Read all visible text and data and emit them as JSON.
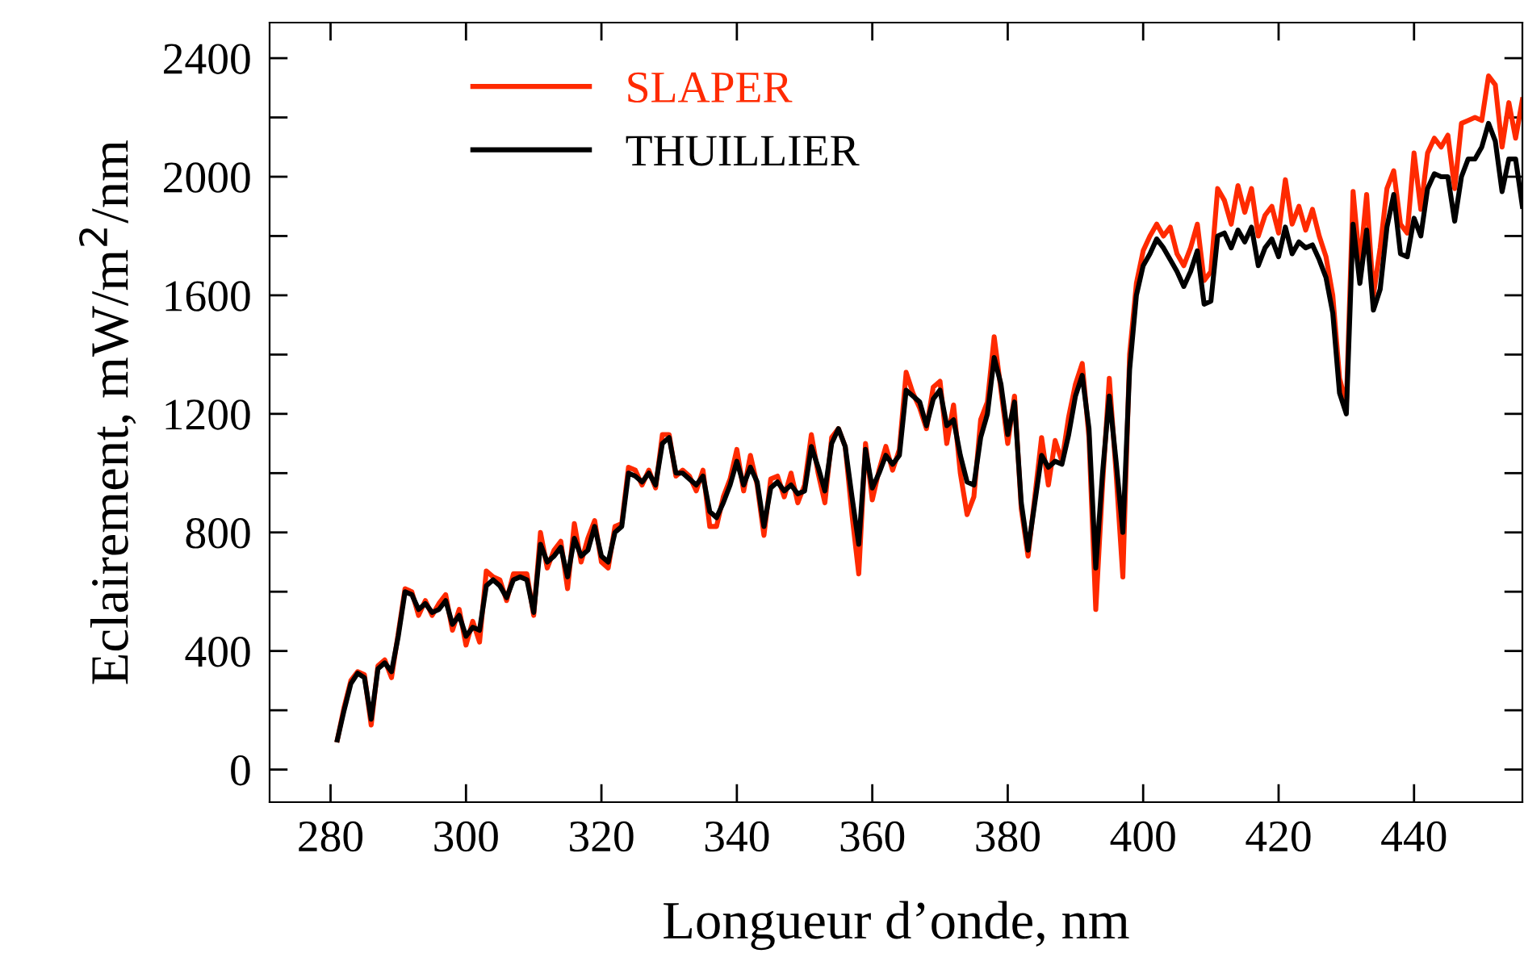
{
  "chart_data": {
    "type": "line",
    "xlabel": "Longueur d’onde, nm",
    "ylabel": "Eclairement, mW/m$^{2}$/nm",
    "x": [
      281,
      282,
      283,
      284,
      285,
      286,
      287,
      288,
      289,
      290,
      291,
      292,
      293,
      294,
      295,
      296,
      297,
      298,
      299,
      300,
      301,
      302,
      303,
      304,
      305,
      306,
      307,
      308,
      309,
      310,
      311,
      312,
      313,
      314,
      315,
      316,
      317,
      318,
      319,
      320,
      321,
      322,
      323,
      324,
      325,
      326,
      327,
      328,
      329,
      330,
      331,
      332,
      333,
      334,
      335,
      336,
      337,
      338,
      339,
      340,
      341,
      342,
      343,
      344,
      345,
      346,
      347,
      348,
      349,
      350,
      351,
      352,
      353,
      354,
      355,
      356,
      357,
      358,
      359,
      360,
      361,
      362,
      363,
      364,
      365,
      366,
      367,
      368,
      369,
      370,
      371,
      372,
      373,
      374,
      375,
      376,
      377,
      378,
      379,
      380,
      381,
      382,
      383,
      384,
      385,
      386,
      387,
      388,
      389,
      390,
      391,
      392,
      393,
      394,
      395,
      396,
      397,
      398,
      399,
      400,
      401,
      402,
      403,
      404,
      405,
      406,
      407,
      408,
      409,
      410,
      411,
      412,
      413,
      414,
      415,
      416,
      417,
      418,
      419,
      420,
      421,
      422,
      423,
      424,
      425,
      426,
      427,
      428,
      429,
      430,
      431,
      432,
      433,
      434,
      435,
      436,
      437,
      438,
      439,
      440,
      441,
      442,
      443,
      444,
      445,
      446,
      447,
      448,
      449,
      450,
      451,
      452,
      453,
      454,
      455,
      456
    ],
    "series": [
      {
        "name": "SLAPER",
        "color": "#ff2a00",
        "values": [
          100,
          210,
          300,
          330,
          320,
          150,
          350,
          370,
          310,
          460,
          610,
          600,
          520,
          570,
          520,
          560,
          590,
          470,
          540,
          420,
          500,
          430,
          670,
          650,
          640,
          570,
          660,
          660,
          660,
          520,
          800,
          680,
          740,
          770,
          610,
          830,
          700,
          780,
          840,
          700,
          680,
          820,
          830,
          1020,
          1010,
          960,
          1010,
          950,
          1130,
          1130,
          990,
          1010,
          990,
          940,
          1010,
          820,
          820,
          920,
          980,
          1080,
          940,
          1060,
          960,
          790,
          980,
          990,
          920,
          1000,
          900,
          960,
          1130,
          1000,
          900,
          1120,
          1150,
          1090,
          860,
          660,
          1100,
          910,
          1010,
          1090,
          1010,
          1080,
          1340,
          1270,
          1220,
          1150,
          1290,
          1310,
          1100,
          1230,
          1000,
          860,
          920,
          1180,
          1240,
          1460,
          1280,
          1100,
          1260,
          880,
          720,
          920,
          1120,
          960,
          1110,
          1040,
          1190,
          1300,
          1370,
          1120,
          540,
          960,
          1320,
          1000,
          650,
          1400,
          1640,
          1750,
          1800,
          1840,
          1800,
          1830,
          1740,
          1700,
          1760,
          1840,
          1650,
          1680,
          1960,
          1920,
          1840,
          1970,
          1880,
          1960,
          1800,
          1870,
          1900,
          1810,
          1990,
          1840,
          1900,
          1820,
          1890,
          1800,
          1730,
          1600,
          1320,
          1230,
          1950,
          1700,
          1940,
          1600,
          1760,
          1960,
          2020,
          1840,
          1810,
          2080,
          1890,
          2080,
          2130,
          2100,
          2140,
          1960,
          2180,
          2190,
          2200,
          2190,
          2340,
          2310,
          2100,
          2250,
          2130,
          2260
        ]
      },
      {
        "name": "THUILLIER",
        "color": "#000000",
        "values": [
          100,
          200,
          290,
          325,
          310,
          170,
          340,
          360,
          330,
          450,
          600,
          590,
          540,
          560,
          530,
          540,
          570,
          490,
          520,
          450,
          480,
          470,
          620,
          640,
          620,
          580,
          640,
          650,
          640,
          530,
          760,
          700,
          720,
          750,
          650,
          780,
          720,
          740,
          820,
          720,
          700,
          800,
          820,
          1000,
          990,
          970,
          1000,
          960,
          1100,
          1120,
          1000,
          1000,
          980,
          960,
          990,
          870,
          850,
          900,
          960,
          1040,
          960,
          1020,
          970,
          820,
          950,
          970,
          940,
          960,
          930,
          940,
          1090,
          1020,
          940,
          1100,
          1150,
          1090,
          920,
          760,
          1080,
          950,
          1000,
          1060,
          1030,
          1060,
          1280,
          1260,
          1240,
          1160,
          1250,
          1280,
          1160,
          1180,
          1060,
          970,
          960,
          1120,
          1200,
          1390,
          1300,
          1130,
          1240,
          900,
          740,
          900,
          1060,
          1020,
          1040,
          1030,
          1130,
          1260,
          1330,
          1150,
          680,
          1000,
          1260,
          1040,
          800,
          1350,
          1600,
          1700,
          1740,
          1790,
          1760,
          1720,
          1680,
          1630,
          1680,
          1750,
          1570,
          1580,
          1800,
          1810,
          1760,
          1820,
          1780,
          1830,
          1700,
          1760,
          1790,
          1730,
          1830,
          1740,
          1780,
          1760,
          1770,
          1720,
          1660,
          1540,
          1270,
          1200,
          1840,
          1640,
          1820,
          1550,
          1620,
          1830,
          1940,
          1740,
          1730,
          1860,
          1800,
          1960,
          2010,
          2000,
          2000,
          1850,
          2000,
          2060,
          2060,
          2100,
          2180,
          2120,
          1950,
          2060,
          2060,
          1900
        ]
      }
    ],
    "xlim": [
      271,
      456
    ],
    "xticks": [
      280,
      300,
      320,
      340,
      360,
      380,
      400,
      420,
      440
    ],
    "ylim": [
      -110,
      2520
    ],
    "yticks": [
      0,
      {
        "value": 200,
        "label": null
      },
      400,
      {
        "value": 600,
        "label": null
      },
      800,
      {
        "value": 1000,
        "label": null
      },
      1200,
      {
        "value": 1400,
        "label": null
      },
      1600,
      {
        "value": 1800,
        "label": null
      },
      2000,
      {
        "value": 2200,
        "label": null
      },
      2400
    ],
    "legend": "top left",
    "grid": false,
    "line_style": "solid",
    "marker": "none"
  }
}
